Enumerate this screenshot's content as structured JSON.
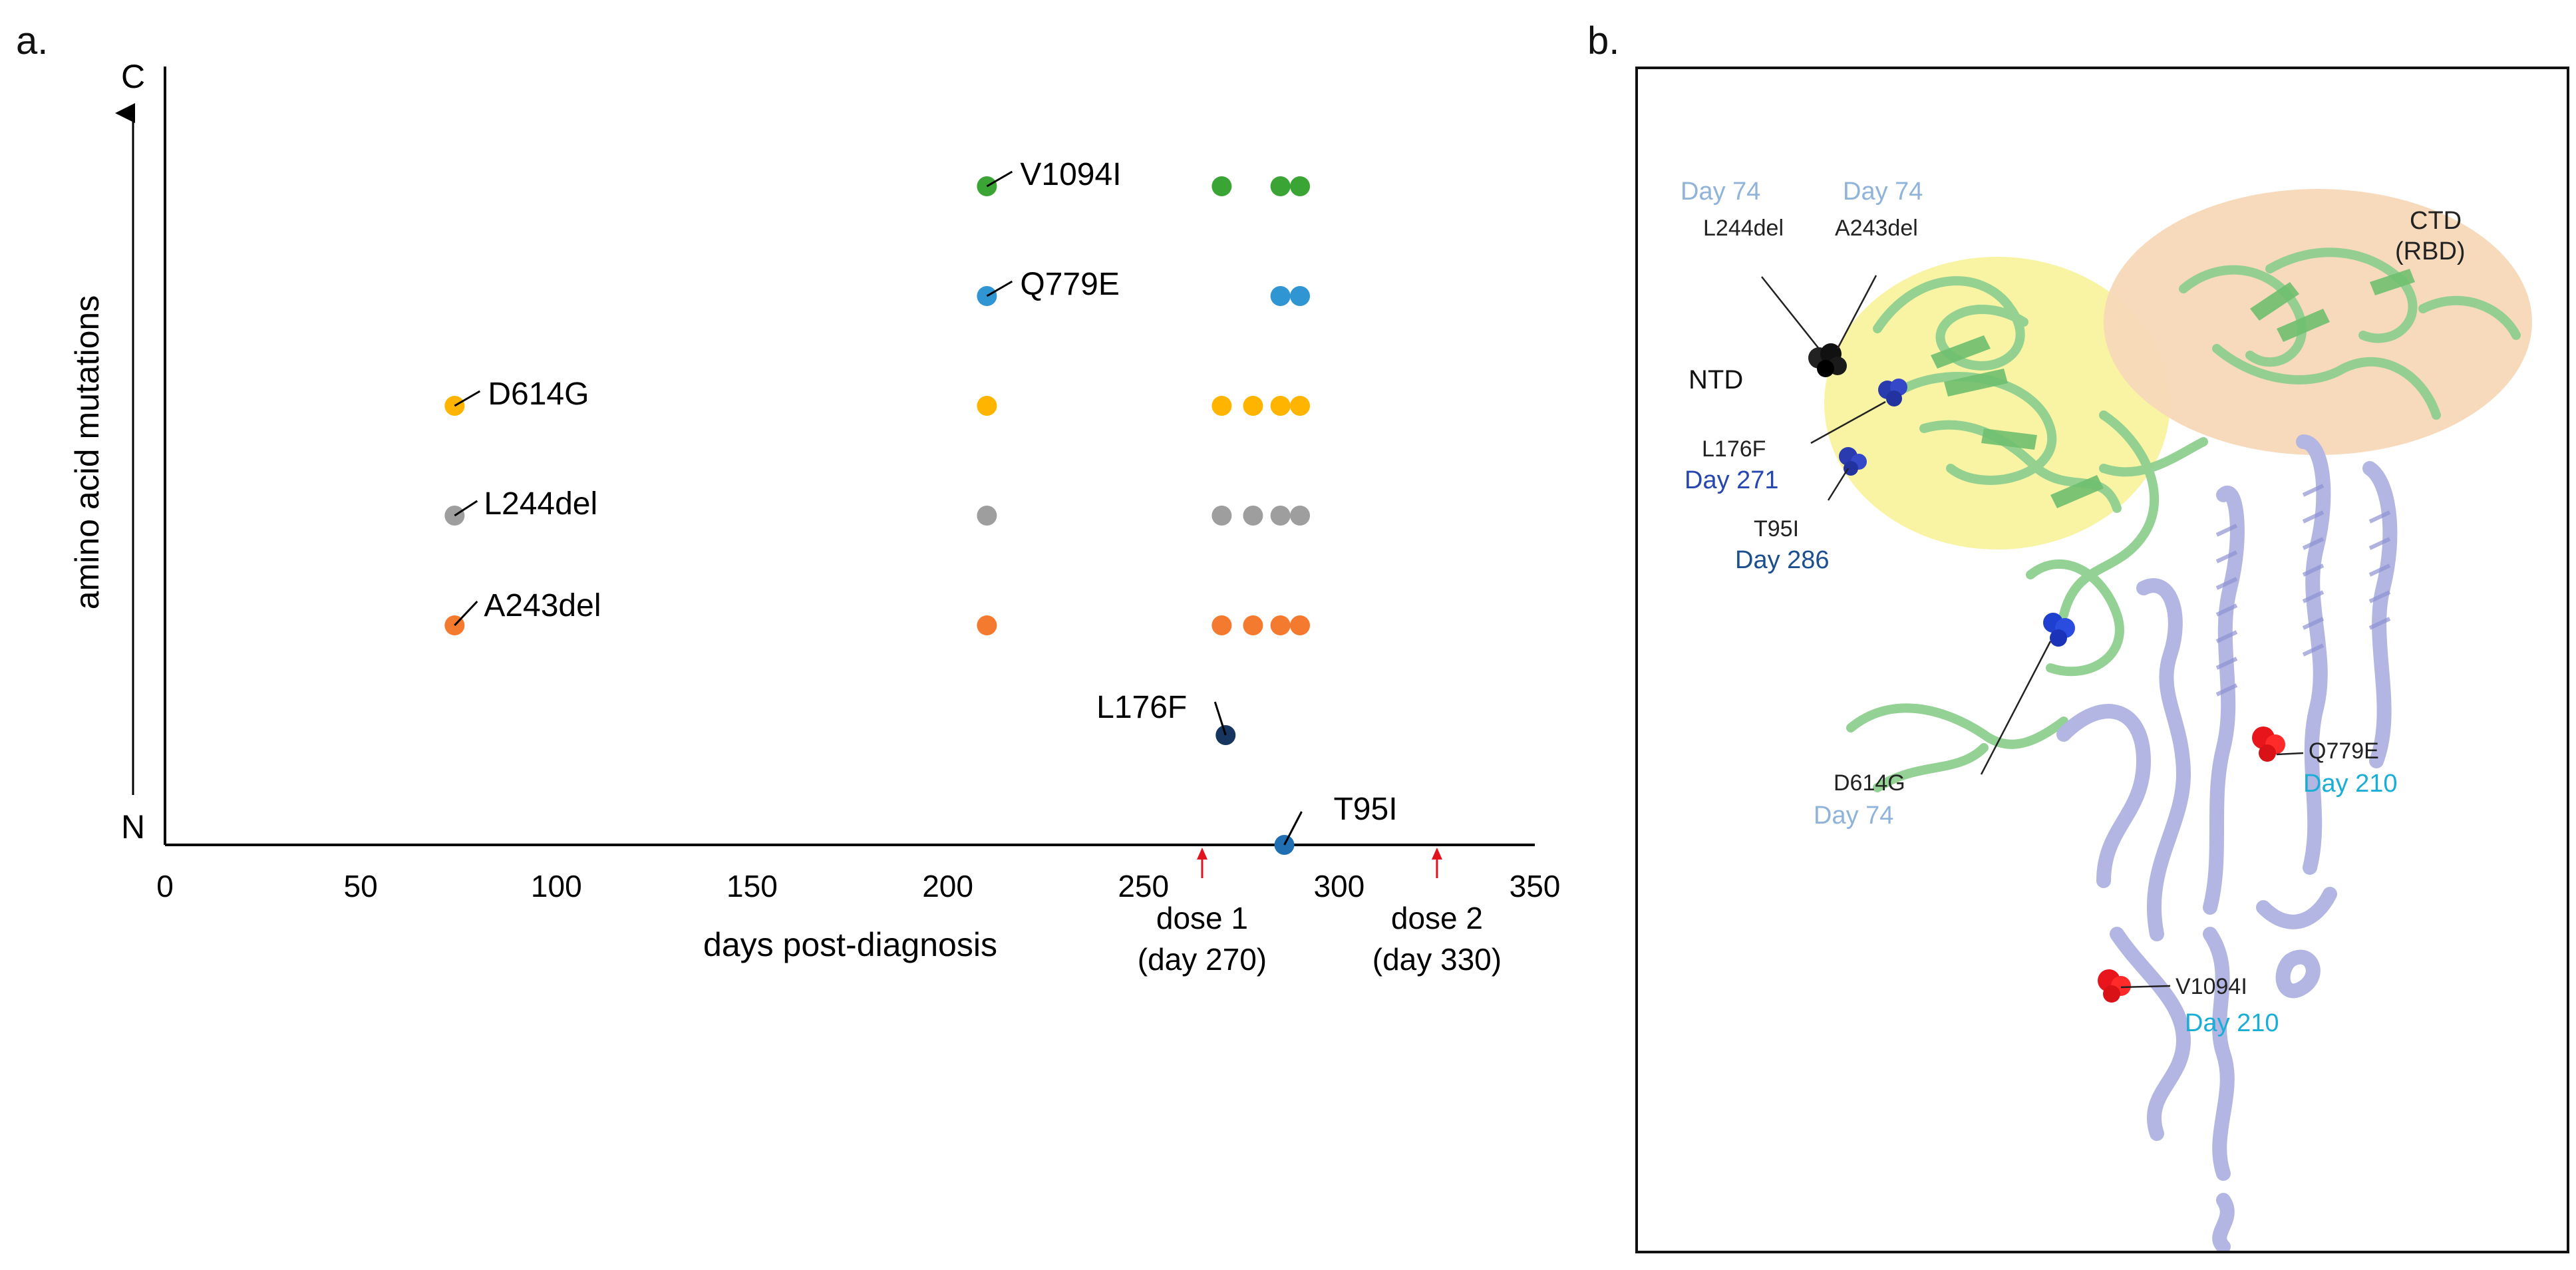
{
  "panel_a_label": "a.",
  "panel_b_label": "b.",
  "chart_data": {
    "type": "scatter",
    "title": "",
    "xlabel": "days post-diagnosis",
    "ylabel": "amino acid mutations",
    "y_top_label": "C",
    "y_bottom_label": "N",
    "xlim": [
      0,
      350
    ],
    "xticks": [
      0,
      50,
      100,
      150,
      200,
      250,
      300,
      350
    ],
    "ylim": [
      0,
      7
    ],
    "categories": [
      "T95I",
      "L176F",
      "A243del",
      "L244del",
      "D614G",
      "Q779E",
      "V1094I"
    ],
    "series": [
      {
        "name": "V1094I",
        "color": "#3aa535",
        "level": 6,
        "x": [
          210,
          270,
          285,
          290
        ]
      },
      {
        "name": "Q779E",
        "color": "#2f95d3",
        "level": 5,
        "x": [
          210,
          285,
          290
        ]
      },
      {
        "name": "D614G",
        "color": "#ffb400",
        "level": 4,
        "x": [
          74,
          210,
          270,
          278,
          285,
          290
        ]
      },
      {
        "name": "L244del",
        "color": "#9e9e9e",
        "level": 3,
        "x": [
          74,
          210,
          270,
          278,
          285,
          290
        ]
      },
      {
        "name": "A243del",
        "color": "#f47a30",
        "level": 2,
        "x": [
          74,
          210,
          270,
          278,
          285,
          290
        ]
      },
      {
        "name": "L176F",
        "color": "#17365f",
        "level": 1,
        "x": [
          271
        ]
      },
      {
        "name": "T95I",
        "color": "#1f6fb2",
        "level": 0,
        "x": [
          286
        ]
      }
    ],
    "annotations": [
      {
        "text": "dose 1",
        "subtext": "(day 270)",
        "x": 265,
        "color": "#e0141e"
      },
      {
        "text": "dose 2",
        "subtext": "(day 330)",
        "x": 325,
        "color": "#e0141e"
      }
    ]
  },
  "structure": {
    "domains": [
      {
        "label": "NTD",
        "color": "#f7f39a"
      },
      {
        "label": "CTD",
        "sublabel": "(RBD)",
        "color": "#f7d8b8"
      }
    ],
    "mutation_labels": [
      {
        "name": "L244del",
        "day": "Day 74",
        "day_color": "#8fb3d9"
      },
      {
        "name": "A243del",
        "day": "Day 74",
        "day_color": "#8fb3d9"
      },
      {
        "name": "L176F",
        "day": "Day 271",
        "day_color": "#2747b0"
      },
      {
        "name": "T95I",
        "day": "Day 286",
        "day_color": "#1b4f8f"
      },
      {
        "name": "D614G",
        "day": "Day 74",
        "day_color": "#8fb3d9"
      },
      {
        "name": "Q779E",
        "day": "Day 210",
        "day_color": "#1aaed6"
      },
      {
        "name": "V1094I",
        "day": "Day 210",
        "day_color": "#1aaed6"
      }
    ]
  }
}
